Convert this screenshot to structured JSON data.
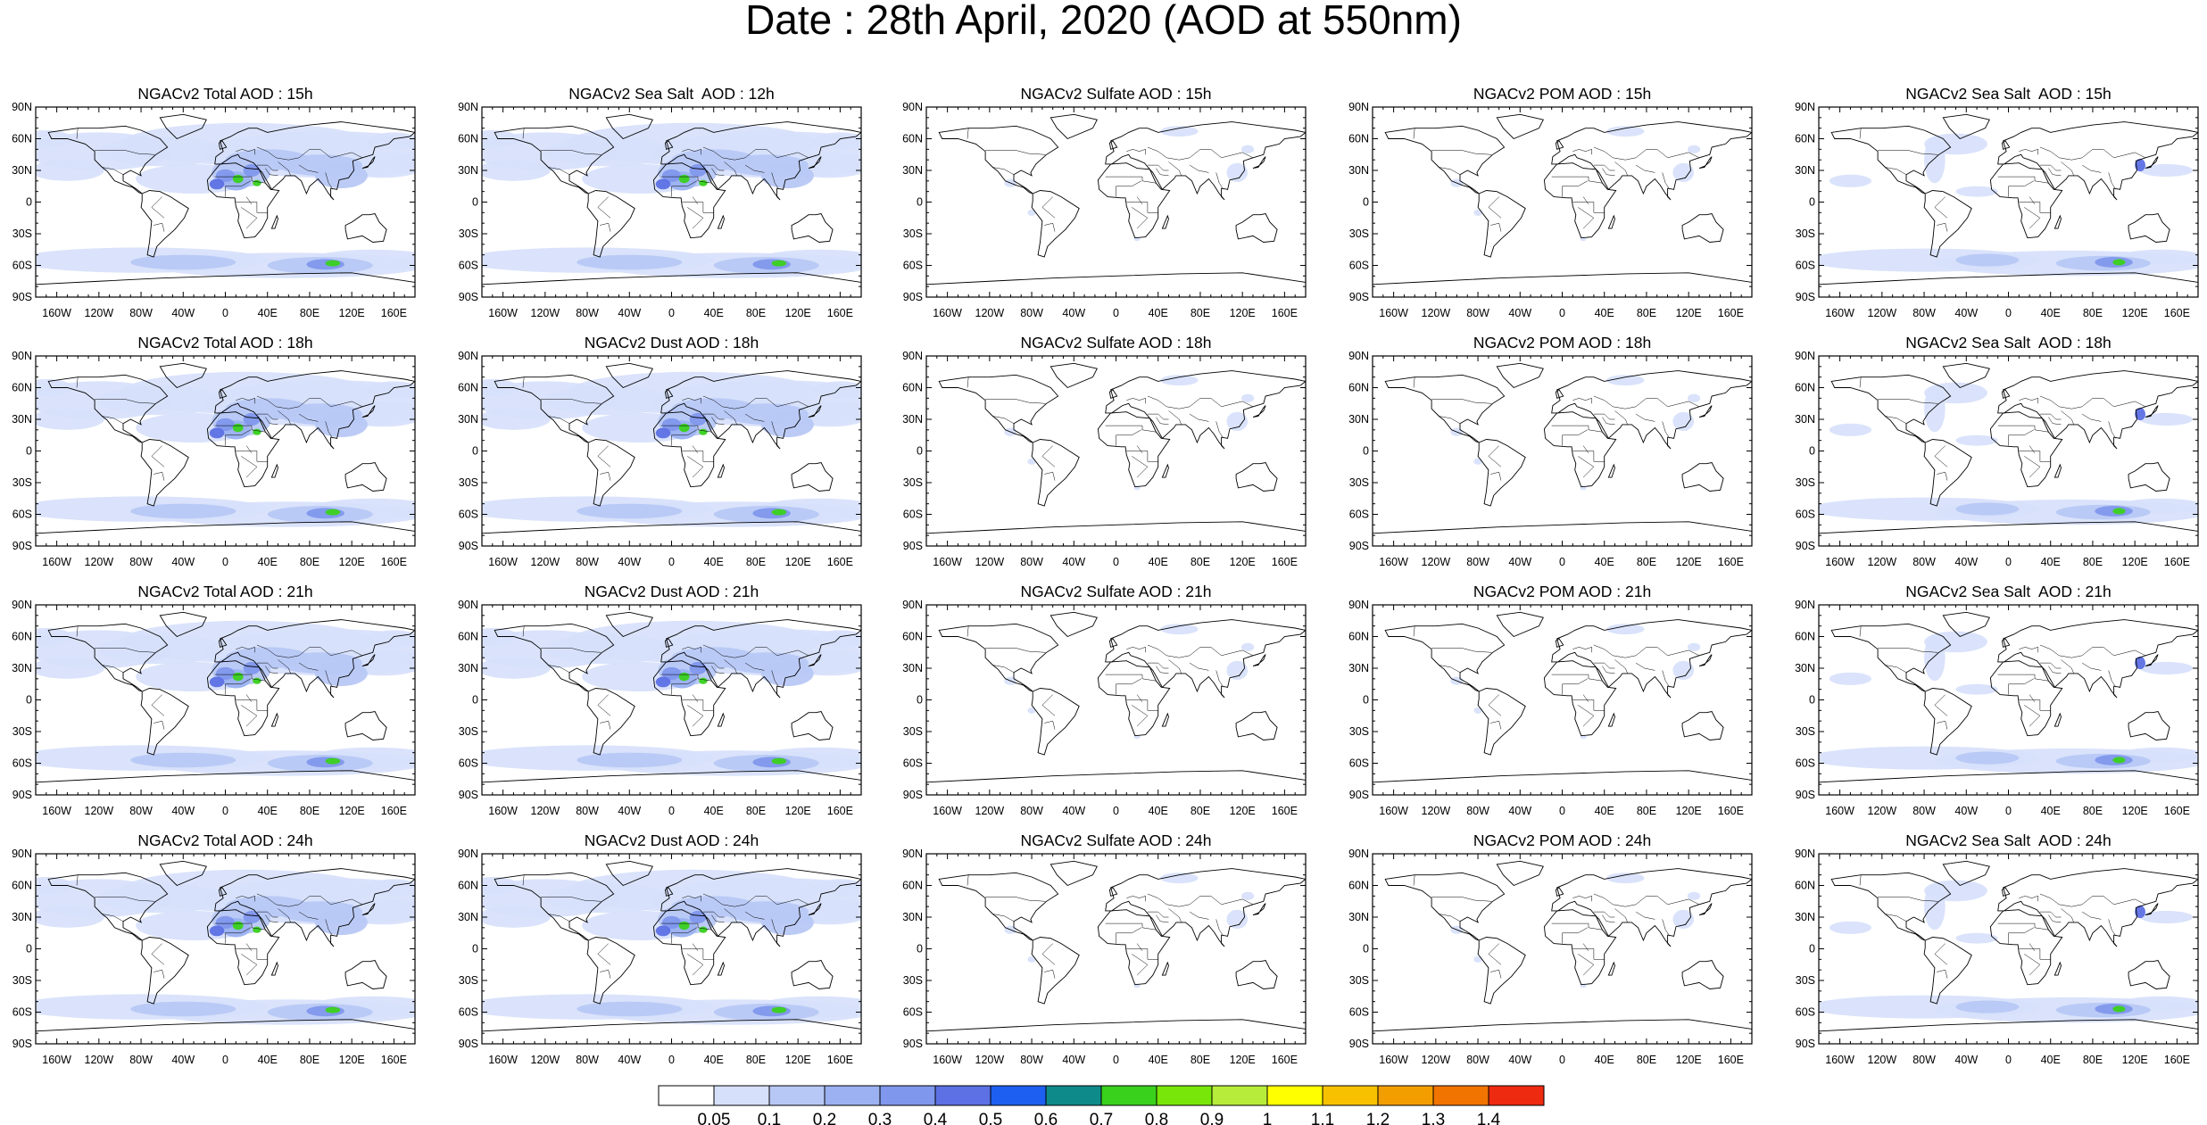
{
  "title": "Date : 28th April, 2020 (AOD at 550nm)",
  "lat_labels": [
    "90N",
    "60N",
    "30N",
    "0",
    "30S",
    "60S",
    "90S"
  ],
  "lon_labels": [
    "160W",
    "120W",
    "80W",
    "40W",
    "0",
    "40E",
    "80E",
    "120E",
    "160E"
  ],
  "rows": [
    [
      "NGACv2 Total AOD : 15h",
      "NGACv2 Sea Salt  AOD : 12h",
      "NGACv2 Sulfate AOD : 15h",
      "NGACv2 POM AOD : 15h",
      "NGACv2 Sea Salt  AOD : 15h"
    ],
    [
      "NGACv2 Total AOD : 18h",
      "NGACv2 Dust AOD : 18h",
      "NGACv2 Sulfate AOD : 18h",
      "NGACv2 POM AOD : 18h",
      "NGACv2 Sea Salt  AOD : 18h"
    ],
    [
      "NGACv2 Total AOD : 21h",
      "NGACv2 Dust AOD : 21h",
      "NGACv2 Sulfate AOD : 21h",
      "NGACv2 POM AOD : 21h",
      "NGACv2 Sea Salt  AOD : 21h"
    ],
    [
      "NGACv2 Total AOD : 24h",
      "NGACv2 Dust AOD : 24h",
      "NGACv2 Sulfate AOD : 24h",
      "NGACv2 POM AOD : 24h",
      "NGACv2 Sea Salt  AOD : 24h"
    ]
  ],
  "colorbar": {
    "labels": [
      "0.05",
      "0.1",
      "0.2",
      "0.3",
      "0.4",
      "0.5",
      "0.6",
      "0.7",
      "0.8",
      "0.9",
      "1",
      "1.1",
      "1.2",
      "1.3",
      "1.4"
    ],
    "colors": [
      "#ffffff",
      "#d6e0fb",
      "#b8c8f6",
      "#9bb1f1",
      "#7f97ec",
      "#5d70e4",
      "#1d5ff0",
      "#0f8a8a",
      "#3ad11c",
      "#79e60a",
      "#b8ec3a",
      "#ffff00",
      "#f8c100",
      "#f39e00",
      "#f27400",
      "#ee2a10"
    ]
  },
  "fields": {
    "total": "dense",
    "dust": "dense",
    "sulfate": "sparse",
    "pom": "sparse",
    "seasalt": "medium"
  },
  "icons": {
    "map": "world-map-coastlines"
  }
}
